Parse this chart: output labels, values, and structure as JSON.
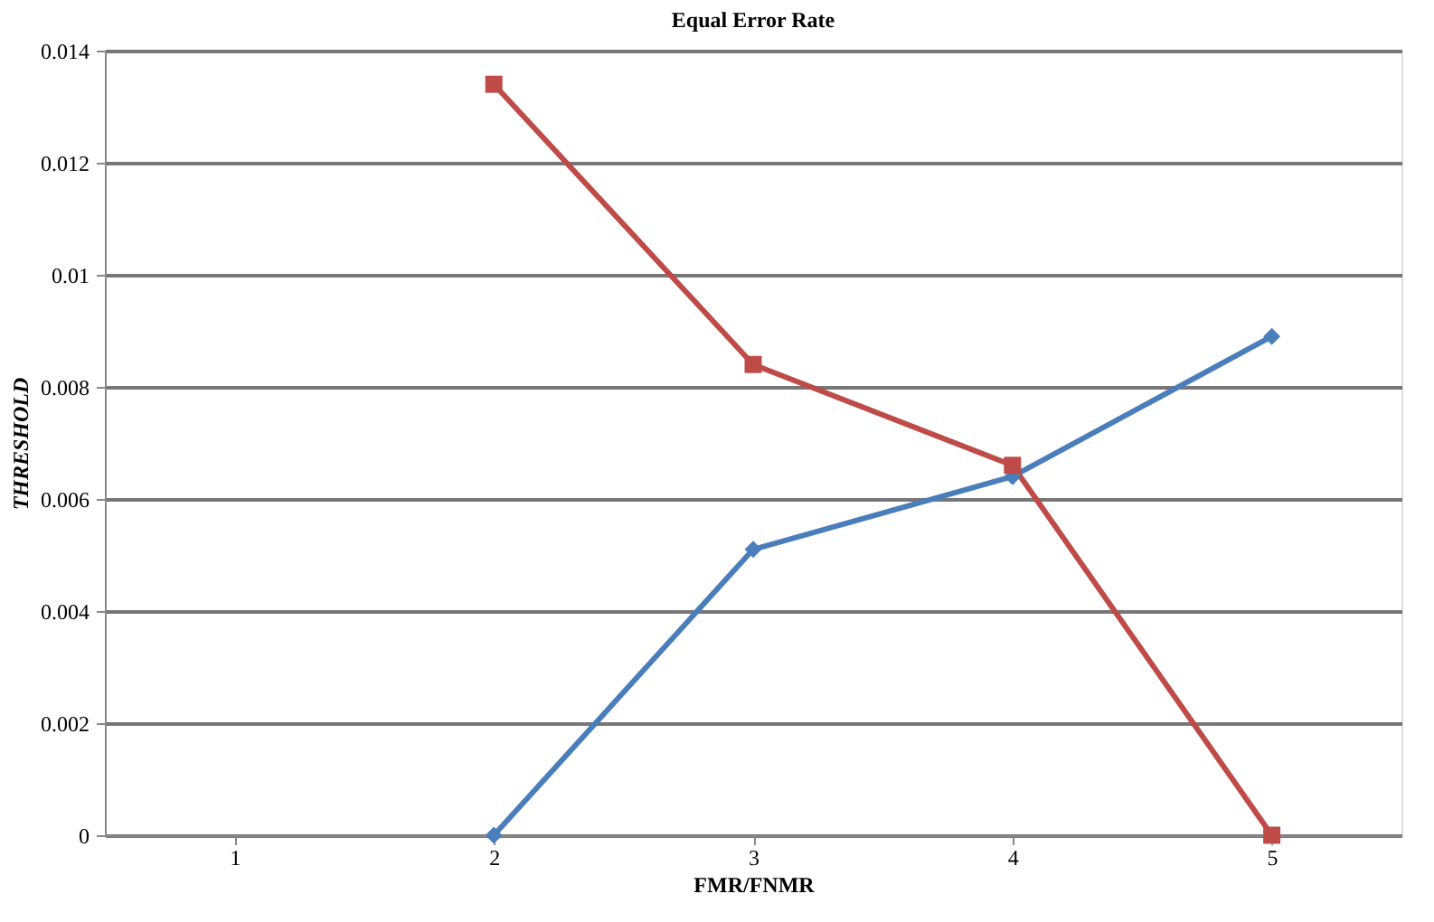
{
  "chart_data": {
    "type": "line",
    "title": "Equal Error Rate",
    "xlabel": "FMR/FNMR",
    "ylabel": "THRESHOLD",
    "categories": [
      "1",
      "2",
      "3",
      "4",
      "5"
    ],
    "series": [
      {
        "color": "#4a7ebb",
        "marker": "diamond",
        "values": [
          null,
          0,
          0.0051,
          0.0064,
          0.0089
        ]
      },
      {
        "color": "#be4b48",
        "marker": "square",
        "values": [
          null,
          0.0134,
          0.0084,
          0.0066,
          0
        ]
      }
    ],
    "ylim": [
      0,
      0.014
    ],
    "yticks": [
      0,
      0.002,
      0.004,
      0.006,
      0.008,
      0.01,
      0.012,
      0.014
    ],
    "grid": "y",
    "legend": false
  }
}
